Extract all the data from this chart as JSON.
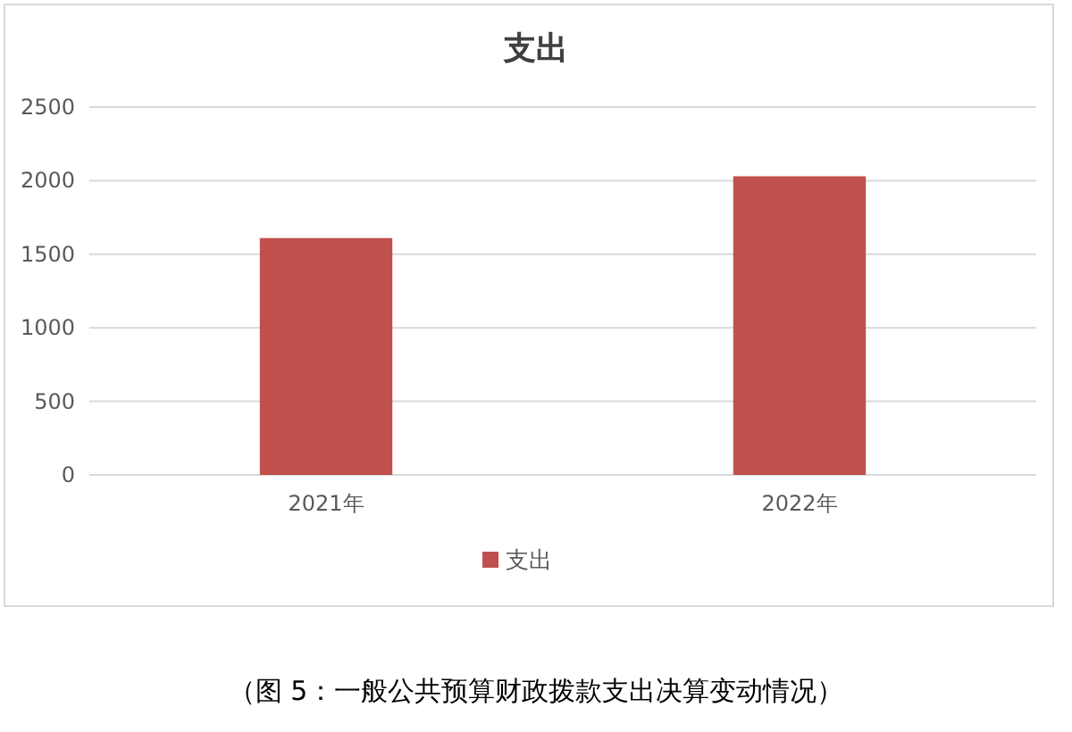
{
  "chart_data": {
    "type": "bar",
    "title": "支出",
    "categories": [
      "2021年",
      "2022年"
    ],
    "series": [
      {
        "name": "支出",
        "color": "#c0504d",
        "values": [
          1610,
          2030
        ]
      }
    ],
    "ylim": [
      0,
      2500
    ],
    "yticks": [
      0,
      500,
      1000,
      1500,
      2000,
      2500
    ],
    "grid": "y",
    "legend": "bottom",
    "annotations": [
      "（图 5：一般公共预算财政拨款支出决算变动情况）"
    ]
  }
}
